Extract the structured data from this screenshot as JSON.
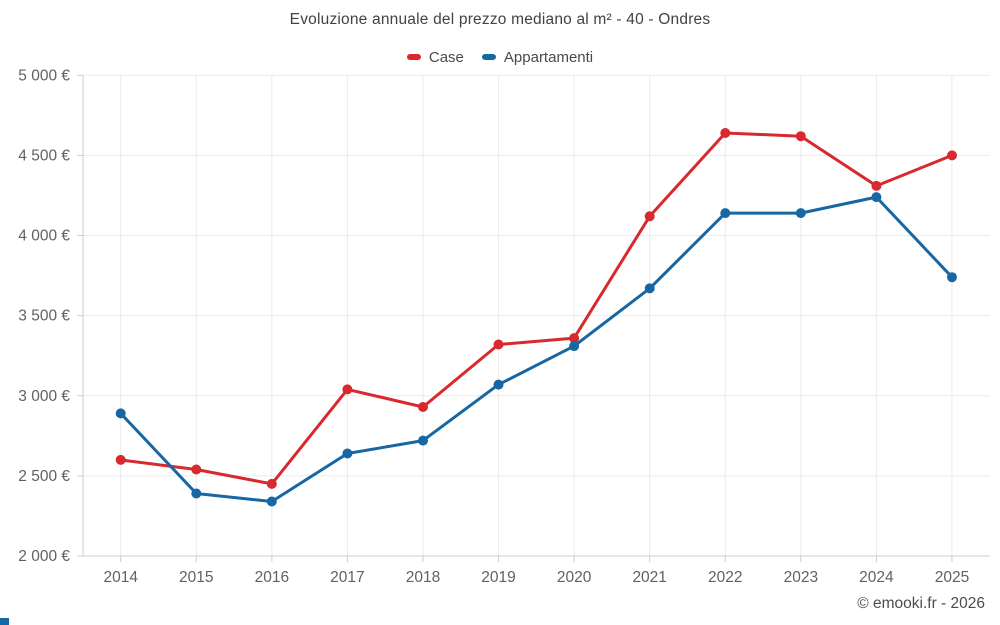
{
  "title": "Evoluzione annuale del prezzo mediano al m² - 40 - Ondres",
  "legend": [
    {
      "label": "Case",
      "color": "#d8292e"
    },
    {
      "label": "Appartamenti",
      "color": "#1667a3"
    }
  ],
  "footer": "© emooki.fr - 2026",
  "colors": {
    "grid": "#ebebeb",
    "axis": "#cccccc",
    "tick_text": "#616161",
    "title_text": "#424242"
  },
  "chart_data": {
    "type": "line",
    "title": "Evoluzione annuale del prezzo mediano al m² - 40 - Ondres",
    "categories": [
      "2014",
      "2015",
      "2016",
      "2017",
      "2018",
      "2019",
      "2020",
      "2021",
      "2022",
      "2023",
      "2024",
      "2025"
    ],
    "series": [
      {
        "name": "Case",
        "color": "#d8292e",
        "values": [
          2600,
          2540,
          2450,
          3040,
          2930,
          3320,
          3360,
          4120,
          4640,
          4620,
          4310,
          4500
        ]
      },
      {
        "name": "Appartamenti",
        "color": "#1667a3",
        "values": [
          2890,
          2390,
          2340,
          2640,
          2720,
          3070,
          3310,
          3670,
          4140,
          4140,
          4240,
          3740
        ]
      }
    ],
    "xlabel": "",
    "ylabel": "",
    "ylim": [
      2000,
      5000
    ],
    "ytick_step": 500,
    "ytick_suffix": " €",
    "grid": true,
    "legend_position": "top",
    "marker_radius": 5,
    "line_width": 3
  }
}
